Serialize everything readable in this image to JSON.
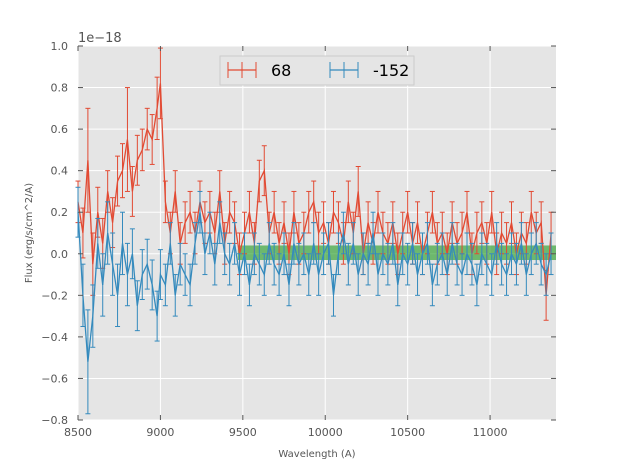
{
  "chart_data": {
    "type": "line",
    "title": "",
    "xlabel": "Wavelength (A)",
    "ylabel": "Flux (erg/s/cm^2/A)",
    "y_offset_label": "1e−18",
    "xlim": [
      8500,
      11400
    ],
    "ylim": [
      -0.8,
      1.0
    ],
    "xticks": [
      8500,
      9000,
      9500,
      10000,
      10500,
      11000
    ],
    "xtick_labels": [
      "8500",
      "9000",
      "9500",
      "10000",
      "10500",
      "11000"
    ],
    "yticks": [
      -0.8,
      -0.6,
      -0.4,
      -0.2,
      0.0,
      0.2,
      0.4,
      0.6,
      0.8,
      1.0
    ],
    "ytick_labels": [
      "−0.8",
      "−0.6",
      "−0.4",
      "−0.2",
      "0.0",
      "0.2",
      "0.4",
      "0.6",
      "0.8",
      "1.0"
    ],
    "grid": true,
    "legend_position": "top-center",
    "background_color": "#e5e5e5",
    "band": {
      "x_start": 9470,
      "x_end": 11400,
      "y_low": -0.03,
      "y_high": 0.04,
      "color": "#2ca02c"
    },
    "series": [
      {
        "name": "68",
        "color": "#e24a33",
        "x": [
          8500,
          8530,
          8560,
          8590,
          8620,
          8650,
          8680,
          8710,
          8740,
          8770,
          8800,
          8830,
          8860,
          8890,
          8920,
          8950,
          8980,
          9000,
          9030,
          9060,
          9090,
          9120,
          9150,
          9180,
          9210,
          9240,
          9270,
          9300,
          9330,
          9360,
          9390,
          9420,
          9450,
          9480,
          9510,
          9540,
          9570,
          9600,
          9630,
          9660,
          9690,
          9720,
          9750,
          9780,
          9810,
          9840,
          9870,
          9900,
          9930,
          9960,
          9990,
          10020,
          10050,
          10080,
          10110,
          10140,
          10170,
          10200,
          10230,
          10260,
          10290,
          10320,
          10350,
          10380,
          10410,
          10440,
          10470,
          10500,
          10530,
          10560,
          10590,
          10620,
          10650,
          10680,
          10710,
          10740,
          10770,
          10800,
          10830,
          10860,
          10890,
          10920,
          10950,
          10980,
          11010,
          11040,
          11070,
          11100,
          11130,
          11160,
          11190,
          11220,
          11250,
          11280,
          11310,
          11340,
          11370
        ],
        "y": [
          0.25,
          0.1,
          0.45,
          -0.05,
          0.2,
          0.05,
          0.3,
          0.15,
          0.35,
          0.4,
          0.55,
          0.3,
          0.45,
          0.5,
          0.6,
          0.55,
          0.7,
          0.82,
          0.25,
          0.1,
          0.3,
          0.05,
          0.15,
          0.2,
          0.1,
          0.25,
          0.15,
          0.2,
          0.1,
          0.3,
          0.05,
          0.2,
          0.15,
          0.0,
          0.1,
          0.2,
          0.05,
          0.35,
          0.4,
          0.1,
          0.2,
          0.05,
          0.15,
          0.0,
          0.2,
          0.05,
          0.1,
          0.2,
          0.25,
          0.1,
          0.15,
          0.05,
          0.2,
          0.15,
          0.05,
          0.25,
          0.1,
          0.3,
          0.0,
          0.15,
          0.05,
          0.2,
          0.1,
          0.05,
          0.15,
          0.0,
          0.1,
          0.2,
          0.05,
          0.15,
          0.0,
          0.1,
          0.2,
          0.05,
          0.1,
          0.0,
          0.15,
          0.05,
          0.1,
          0.2,
          0.0,
          0.1,
          0.15,
          0.05,
          0.2,
          0.0,
          0.1,
          0.05,
          0.15,
          0.0,
          0.1,
          0.05,
          0.2,
          0.1,
          0.15,
          -0.2,
          0.1
        ],
        "yerr": [
          0.1,
          0.12,
          0.25,
          0.15,
          0.12,
          0.12,
          0.1,
          0.12,
          0.12,
          0.13,
          0.25,
          0.12,
          0.12,
          0.1,
          0.1,
          0.12,
          0.15,
          0.17,
          0.1,
          0.1,
          0.1,
          0.1,
          0.1,
          0.1,
          0.1,
          0.1,
          0.1,
          0.1,
          0.1,
          0.1,
          0.1,
          0.1,
          0.1,
          0.1,
          0.1,
          0.1,
          0.1,
          0.1,
          0.12,
          0.1,
          0.1,
          0.1,
          0.1,
          0.1,
          0.1,
          0.1,
          0.1,
          0.1,
          0.1,
          0.1,
          0.1,
          0.1,
          0.1,
          0.1,
          0.1,
          0.1,
          0.1,
          0.12,
          0.1,
          0.1,
          0.1,
          0.1,
          0.1,
          0.1,
          0.1,
          0.1,
          0.1,
          0.1,
          0.1,
          0.1,
          0.1,
          0.1,
          0.1,
          0.1,
          0.1,
          0.1,
          0.1,
          0.1,
          0.1,
          0.1,
          0.1,
          0.1,
          0.1,
          0.1,
          0.1,
          0.1,
          0.1,
          0.1,
          0.1,
          0.1,
          0.1,
          0.1,
          0.1,
          0.1,
          0.1,
          0.12,
          0.1
        ]
      },
      {
        "name": "-152",
        "color": "#348abd",
        "x": [
          8500,
          8530,
          8560,
          8590,
          8620,
          8650,
          8680,
          8710,
          8740,
          8770,
          8800,
          8830,
          8860,
          8890,
          8920,
          8950,
          8980,
          9000,
          9030,
          9060,
          9090,
          9120,
          9150,
          9180,
          9210,
          9240,
          9270,
          9300,
          9330,
          9360,
          9390,
          9420,
          9450,
          9480,
          9510,
          9540,
          9570,
          9600,
          9630,
          9660,
          9690,
          9720,
          9750,
          9780,
          9810,
          9840,
          9870,
          9900,
          9930,
          9960,
          9990,
          10020,
          10050,
          10080,
          10110,
          10140,
          10170,
          10200,
          10230,
          10260,
          10290,
          10320,
          10350,
          10380,
          10410,
          10440,
          10470,
          10500,
          10530,
          10560,
          10590,
          10620,
          10650,
          10680,
          10710,
          10740,
          10770,
          10800,
          10830,
          10860,
          10890,
          10920,
          10950,
          10980,
          11010,
          11040,
          11070,
          11100,
          11130,
          11160,
          11190,
          11220,
          11250,
          11280,
          11310,
          11340,
          11370
        ],
        "y": [
          0.2,
          -0.2,
          -0.52,
          -0.3,
          0.05,
          -0.15,
          0.1,
          -0.05,
          -0.2,
          0.05,
          -0.1,
          0.0,
          -0.25,
          -0.1,
          -0.05,
          -0.15,
          -0.3,
          -0.1,
          -0.15,
          0.05,
          -0.2,
          -0.05,
          -0.1,
          -0.15,
          0.05,
          0.2,
          0.0,
          0.1,
          -0.05,
          0.15,
          0.0,
          -0.05,
          0.05,
          -0.1,
          0.0,
          -0.15,
          0.0,
          -0.05,
          -0.1,
          0.05,
          -0.05,
          -0.1,
          0.0,
          -0.15,
          0.05,
          -0.05,
          0.0,
          -0.1,
          0.05,
          -0.1,
          0.0,
          0.05,
          -0.2,
          0.0,
          0.1,
          -0.05,
          0.05,
          -0.1,
          0.0,
          -0.05,
          0.1,
          -0.1,
          0.0,
          -0.05,
          0.05,
          -0.15,
          0.0,
          -0.05,
          0.05,
          -0.1,
          0.0,
          0.05,
          -0.15,
          -0.05,
          0.0,
          -0.1,
          0.05,
          -0.05,
          -0.1,
          0.0,
          -0.05,
          -0.15,
          0.0,
          -0.05,
          -0.1,
          0.05,
          -0.05,
          -0.1,
          0.0,
          -0.05,
          0.05,
          -0.1,
          0.0,
          0.05,
          -0.05,
          -0.1,
          0.0
        ],
        "yerr": [
          0.12,
          0.15,
          0.25,
          0.15,
          0.12,
          0.15,
          0.15,
          0.15,
          0.15,
          0.15,
          0.15,
          0.12,
          0.12,
          0.12,
          0.12,
          0.12,
          0.12,
          0.12,
          0.1,
          0.1,
          0.1,
          0.1,
          0.1,
          0.1,
          0.1,
          0.1,
          0.1,
          0.1,
          0.1,
          0.1,
          0.1,
          0.1,
          0.1,
          0.1,
          0.1,
          0.1,
          0.1,
          0.1,
          0.1,
          0.1,
          0.1,
          0.1,
          0.1,
          0.1,
          0.1,
          0.1,
          0.1,
          0.1,
          0.1,
          0.1,
          0.1,
          0.1,
          0.1,
          0.1,
          0.1,
          0.1,
          0.1,
          0.1,
          0.1,
          0.1,
          0.1,
          0.1,
          0.1,
          0.1,
          0.1,
          0.1,
          0.1,
          0.1,
          0.1,
          0.1,
          0.1,
          0.1,
          0.1,
          0.1,
          0.1,
          0.1,
          0.1,
          0.1,
          0.1,
          0.1,
          0.1,
          0.1,
          0.1,
          0.1,
          0.1,
          0.1,
          0.1,
          0.1,
          0.1,
          0.1,
          0.1,
          0.1,
          0.1,
          0.1,
          0.1,
          0.1,
          0.1
        ]
      }
    ]
  }
}
